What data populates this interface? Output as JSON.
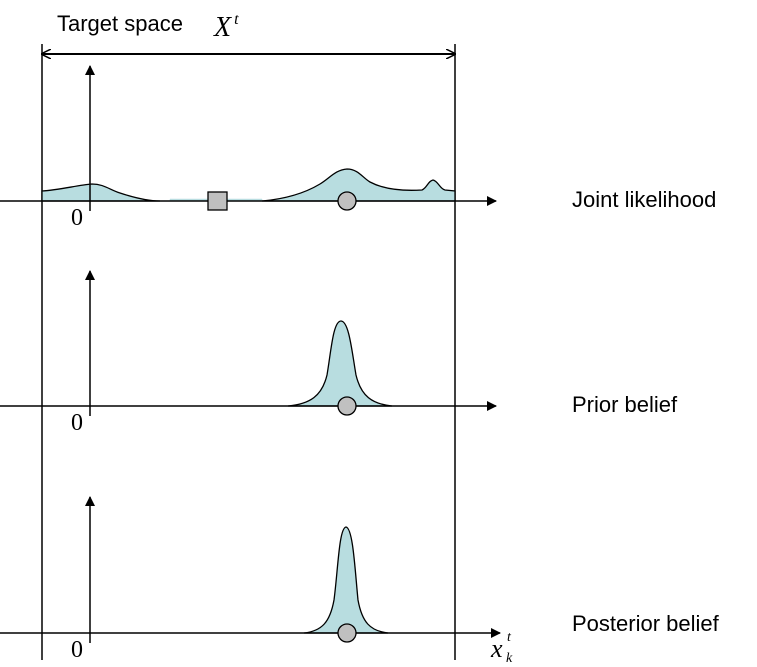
{
  "title": {
    "label": "Target space",
    "symbol": "X",
    "symbol_superscript": "t"
  },
  "x_axis_variable": {
    "symbol": "x",
    "superscript": "t",
    "subscript": "k"
  },
  "panels": [
    {
      "label": "Joint likelihood",
      "origin_label": "0"
    },
    {
      "label": "Prior belief",
      "origin_label": "0"
    },
    {
      "label": "Posterior belief",
      "origin_label": "0"
    }
  ],
  "colors": {
    "curve_fill": "#b8dde0",
    "curve_stroke": "#000000",
    "marker_fill": "#c0c0c0",
    "axis": "#000000"
  },
  "markers": {
    "circle": "circle-marker",
    "square": "square-marker"
  }
}
